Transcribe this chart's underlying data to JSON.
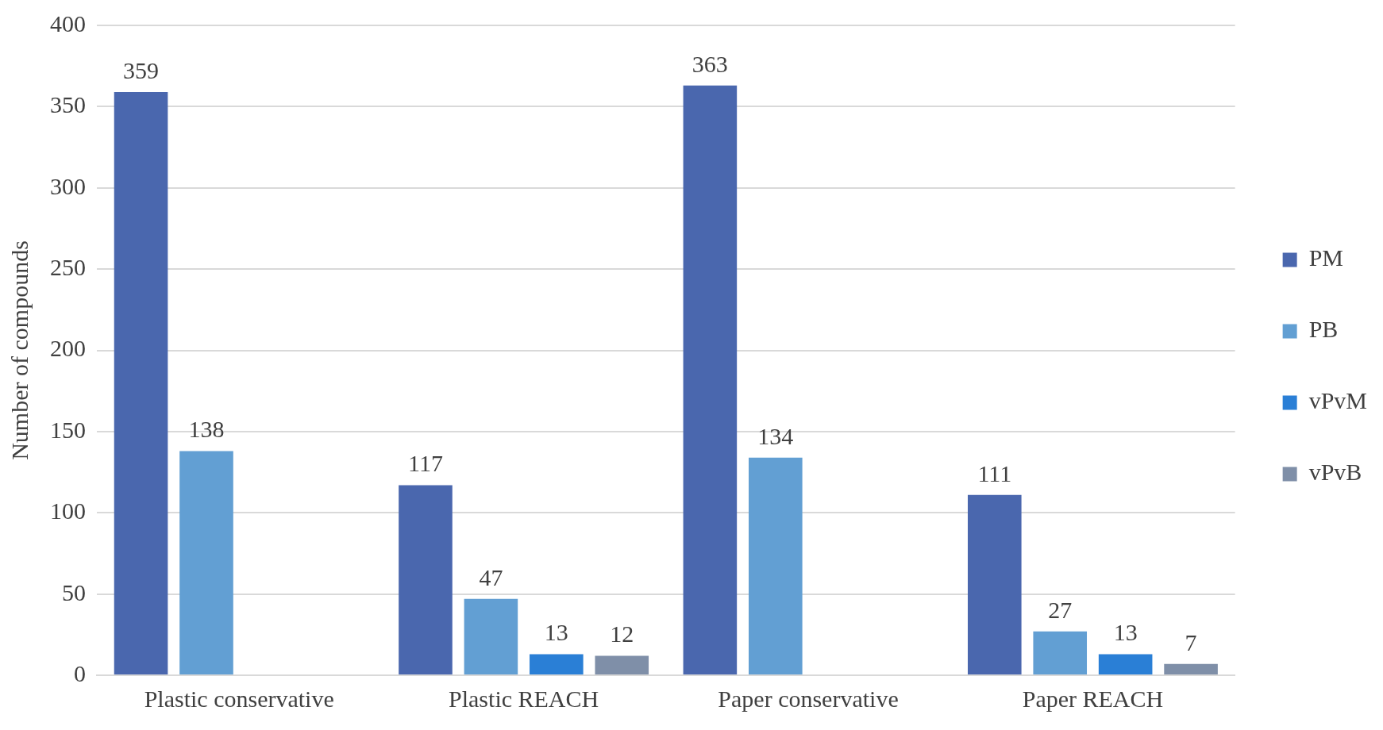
{
  "chart_data": {
    "type": "bar",
    "ylabel": "Number of compounds",
    "categories": [
      "Plastic conservative",
      "Plastic REACH",
      "Paper conservative",
      "Paper REACH"
    ],
    "series": [
      {
        "name": "PM",
        "color": "#4a67ae",
        "values": [
          359,
          117,
          363,
          111
        ]
      },
      {
        "name": "PB",
        "color": "#629fd3",
        "values": [
          138,
          47,
          134,
          27
        ]
      },
      {
        "name": "vPvM",
        "color": "#2a7fd6",
        "values": [
          null,
          13,
          null,
          13
        ]
      },
      {
        "name": "vPvB",
        "color": "#7f8fa8",
        "values": [
          null,
          12,
          null,
          7
        ]
      }
    ],
    "ylim": [
      0,
      400
    ],
    "yticks": [
      0,
      50,
      100,
      150,
      200,
      250,
      300,
      350,
      400
    ],
    "grid": "y",
    "legend": "right",
    "data_labels": true
  }
}
